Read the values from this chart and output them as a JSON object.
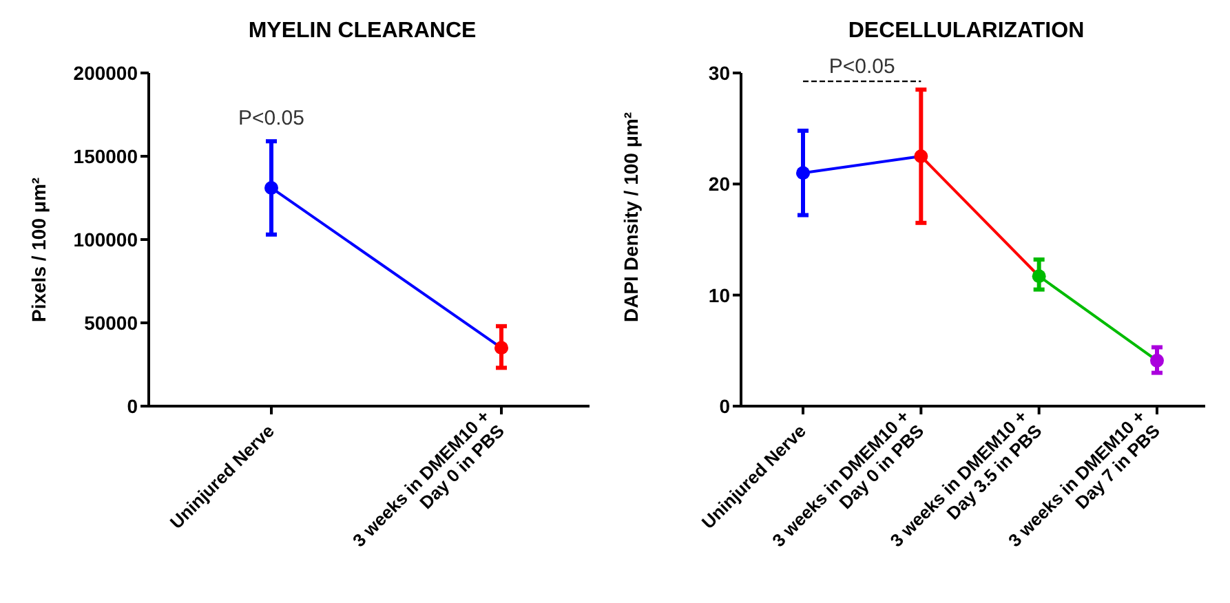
{
  "chart_data": [
    {
      "type": "line",
      "title": "MYELIN CLEARANCE",
      "ylabel": "Pixels / 100 μm²",
      "categories": [
        "Uninjured Nerve",
        "3 weeks in DMEM10 +\nDay 0 in PBS"
      ],
      "series": [
        {
          "values": [
            131000,
            35000
          ],
          "errors": [
            [
              103000,
              159000
            ],
            [
              23000,
              48000
            ]
          ],
          "colors": [
            "#0000ff",
            "#ff0000"
          ]
        }
      ],
      "ylim": [
        0,
        200000
      ],
      "yticks": [
        0,
        50000,
        100000,
        150000,
        200000
      ],
      "grid": false,
      "legend": false,
      "marker": "circle",
      "annotations": [
        "P<0.05"
      ]
    },
    {
      "type": "line",
      "title": "DECELLULARIZATION",
      "ylabel": "DAPI Density / 100 μm²",
      "categories": [
        "Uninjured Nerve",
        "3 weeks in DMEM10 +\nDay 0 in PBS",
        "3 weeks in DMEM10 +\nDay 3.5 in PBS",
        "3 weeks in DMEM10 +\nDay 7 in PBS"
      ],
      "series": [
        {
          "values": [
            21,
            22.5,
            11.7,
            4.1
          ],
          "errors": [
            [
              17.2,
              24.8
            ],
            [
              16.5,
              28.5
            ],
            [
              10.5,
              13.2
            ],
            [
              3,
              5.3
            ]
          ],
          "colors": [
            "#0000ff",
            "#ff0000",
            "#00bb00",
            "#aa00dd"
          ]
        }
      ],
      "ylim": [
        0,
        30
      ],
      "yticks": [
        0,
        10,
        20,
        30
      ],
      "grid": false,
      "legend": false,
      "marker": "circle",
      "annotations": [
        "P<0.05"
      ]
    }
  ]
}
